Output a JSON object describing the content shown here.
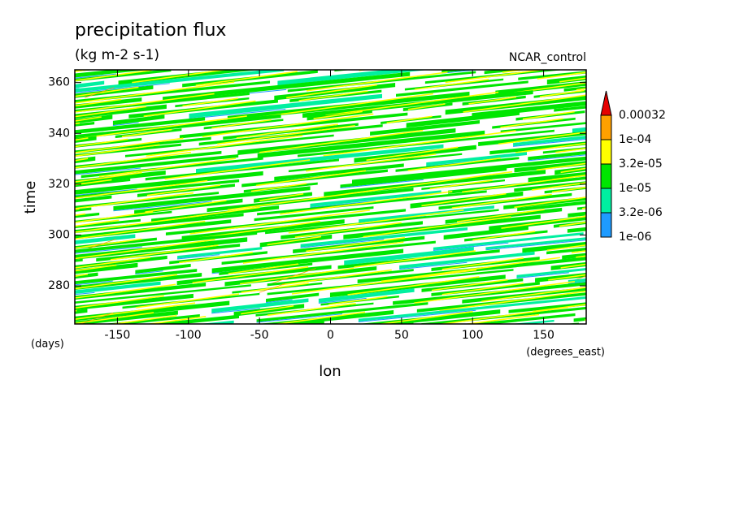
{
  "chart_data": {
    "type": "contour",
    "title": "precipitation flux",
    "subtitle": "(kg m-2 s-1)",
    "annotation": "NCAR_control",
    "x_label": "lon",
    "x_units": "(degrees_east)",
    "y_label": "time",
    "y_units": "(days)",
    "xlim": [
      -180,
      180
    ],
    "xticks": [
      -150,
      -100,
      -50,
      0,
      50,
      100,
      150
    ],
    "ylim": [
      265,
      365
    ],
    "yticks": [
      280,
      300,
      320,
      340,
      360
    ],
    "levels": [
      {
        "value": 1e-06,
        "label": "1e-06"
      },
      {
        "value": 3.2e-06,
        "label": "3.2e-06"
      },
      {
        "value": 1e-05,
        "label": "1e-05"
      },
      {
        "value": 3.2e-05,
        "label": "3.2e-05"
      },
      {
        "value": 0.0001,
        "label": "1e-04"
      },
      0.00032
    ],
    "colors": [
      "#1e9bff",
      "#00f0a0",
      "#00e600",
      "#ffff00",
      "#ffa000",
      "#e60000"
    ]
  }
}
